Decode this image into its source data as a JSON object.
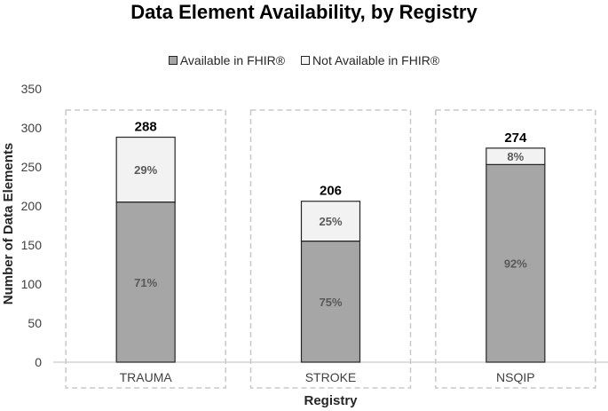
{
  "chart_data": {
    "type": "bar",
    "stacked": true,
    "title": "Data Element Availability, by Registry",
    "xlabel": "Registry",
    "ylabel": "Number of Data Elements",
    "ylim": [
      0,
      350
    ],
    "yticks": [
      "0",
      "50",
      "100",
      "150",
      "200",
      "250",
      "300",
      "350"
    ],
    "categories": [
      "TRAUMA",
      "STROKE",
      "NSQIP"
    ],
    "totals": [
      "288",
      "206",
      "274"
    ],
    "series": [
      {
        "name": "Available in FHIR®",
        "color": "#a6a6a6",
        "values": [
          205,
          155,
          253
        ],
        "labels": [
          "71%",
          "75%",
          "92%"
        ]
      },
      {
        "name": "Not Available in FHIR®",
        "color": "#f2f2f2",
        "values": [
          83,
          51,
          21
        ],
        "labels": [
          "29%",
          "25%",
          "8%"
        ]
      }
    ],
    "gridlines": false,
    "legend_position": "top"
  }
}
